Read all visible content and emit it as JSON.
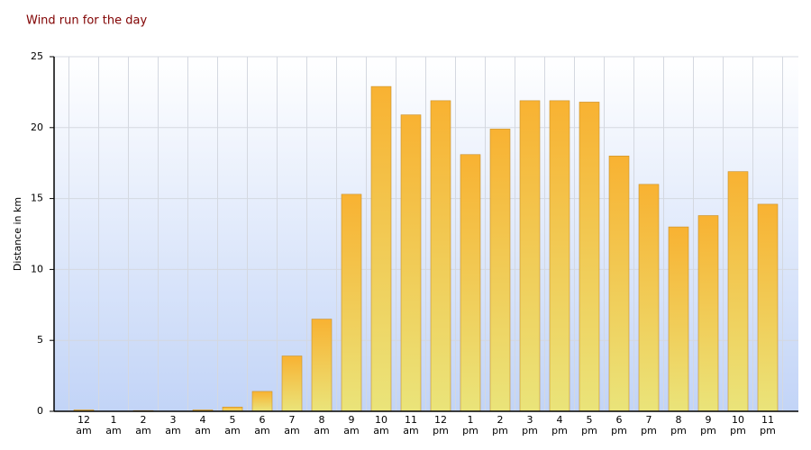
{
  "chart_data": {
    "type": "bar",
    "title": "Wind run for the day",
    "y_label": "Distance in km",
    "categories": [
      "12 am",
      "1 am",
      "2 am",
      "3 am",
      "4 am",
      "5 am",
      "6 am",
      "7 am",
      "8 am",
      "9 am",
      "10 am",
      "11 am",
      "12 pm",
      "1 pm",
      "2 pm",
      "3 pm",
      "4 pm",
      "5 pm",
      "6 pm",
      "7 pm",
      "8 pm",
      "9 pm",
      "10 pm",
      "11 pm"
    ],
    "values": [
      0.1,
      0,
      0.05,
      0,
      0.1,
      0.3,
      1.4,
      3.9,
      6.5,
      15.3,
      22.9,
      20.9,
      21.9,
      18.1,
      19.9,
      21.9,
      21.9,
      21.8,
      18.0,
      16.0,
      13.0,
      13.8,
      16.9,
      14.6
    ],
    "color": "#f8b232",
    "ylim": [
      0,
      25
    ],
    "yticks": [
      0,
      5,
      10,
      15,
      20,
      25
    ],
    "grid": true
  }
}
